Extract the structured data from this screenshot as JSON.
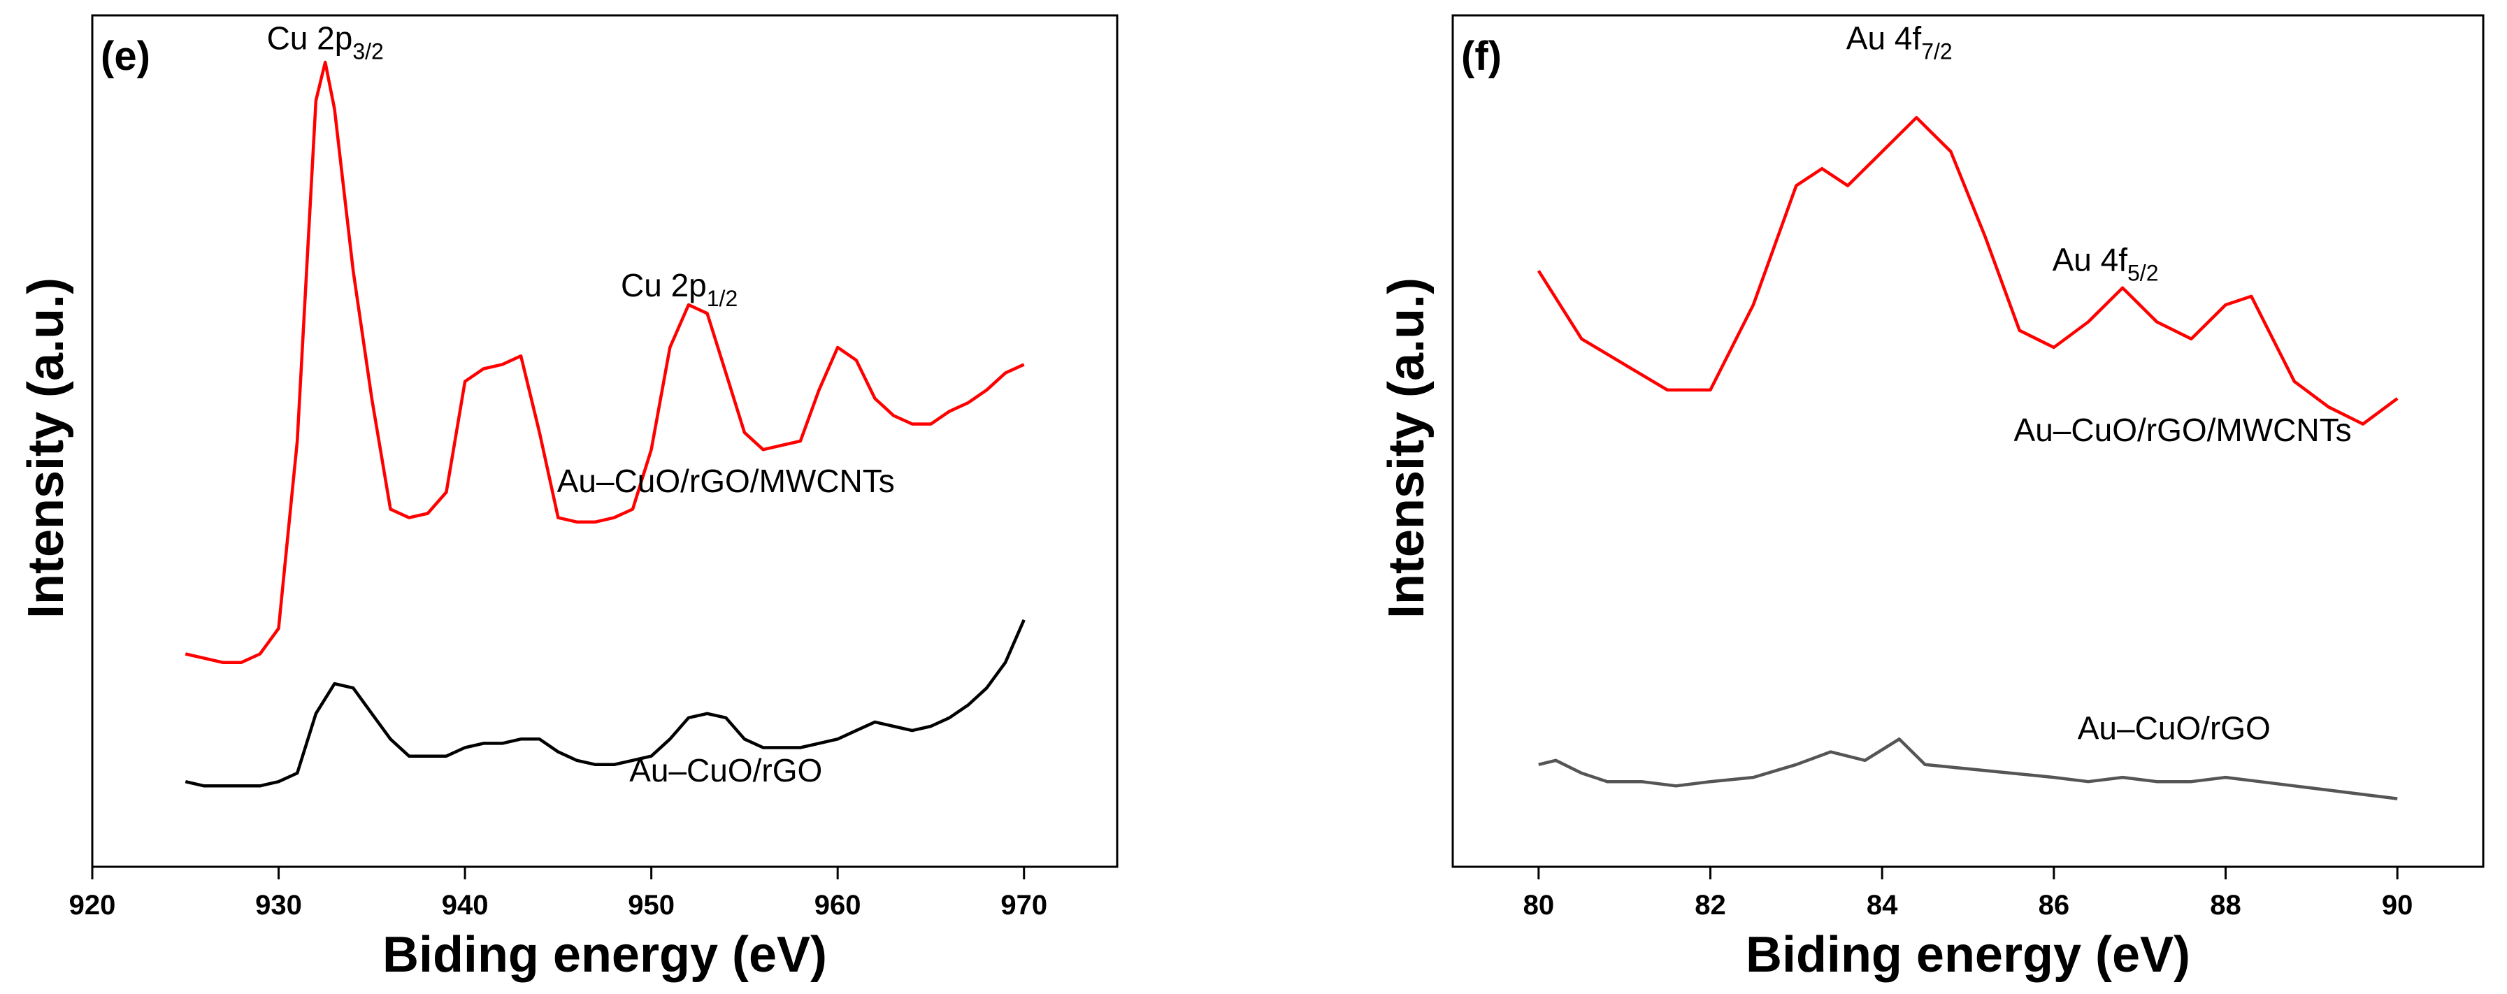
{
  "chart_data": [
    {
      "type": "line",
      "panel_label": "(e)",
      "xlabel": "Biding energy (eV)",
      "ylabel": "Intensity (a.u.)",
      "xlim": [
        920,
        975
      ],
      "ylim": [
        0,
        100
      ],
      "xticks": [
        920,
        930,
        940,
        950,
        960,
        970
      ],
      "annotations": [
        {
          "main": "Cu 2p",
          "sub": "3/2",
          "x": 932.5,
          "y": 96
        },
        {
          "main": "Cu 2p",
          "sub": "1/2",
          "x": 951.5,
          "y": 67
        }
      ],
      "series": [
        {
          "name": "Au–CuO/rGO/MWCNTs",
          "color": "#ff0000",
          "label_at": [
            954,
            44
          ],
          "x": [
            925,
            926,
            927,
            928,
            929,
            930,
            931,
            932,
            932.5,
            933,
            934,
            935,
            936,
            937,
            938,
            939,
            940,
            941,
            942,
            943,
            944,
            945,
            946,
            947,
            948,
            949,
            950,
            951,
            952,
            953,
            954,
            955,
            956,
            957,
            958,
            959,
            960,
            961,
            962,
            963,
            964,
            965,
            966,
            967,
            968,
            969,
            970
          ],
          "y": [
            25,
            24.5,
            24,
            24,
            25,
            28,
            50,
            90,
            94.5,
            89,
            70,
            55,
            42,
            41,
            41.5,
            44,
            57,
            58.5,
            59,
            60,
            51,
            41,
            40.5,
            40.5,
            41,
            42,
            49,
            61,
            66,
            65,
            58,
            51,
            49,
            49.5,
            50,
            56,
            61,
            59.5,
            55,
            53,
            52,
            52,
            53.5,
            54.5,
            56,
            58,
            59
          ]
        },
        {
          "name": "Au–CuO/rGO",
          "color": "#000000",
          "label_at": [
            954,
            10
          ],
          "x": [
            925,
            926,
            927,
            928,
            929,
            930,
            931,
            932,
            933,
            934,
            935,
            936,
            937,
            938,
            939,
            940,
            941,
            942,
            943,
            944,
            945,
            946,
            947,
            948,
            949,
            950,
            951,
            952,
            953,
            954,
            955,
            956,
            957,
            958,
            959,
            960,
            961,
            962,
            963,
            964,
            965,
            966,
            967,
            968,
            969,
            970
          ],
          "y": [
            10,
            9.5,
            9.5,
            9.5,
            9.5,
            10,
            11,
            18,
            21.5,
            21,
            18,
            15,
            13,
            13,
            13,
            14,
            14.5,
            14.5,
            15,
            15,
            13.5,
            12.5,
            12,
            12,
            12.5,
            13,
            15,
            17.5,
            18,
            17.5,
            15,
            14,
            14,
            14,
            14.5,
            15,
            16,
            17,
            16.5,
            16,
            16.5,
            17.5,
            19,
            21,
            24,
            29
          ]
        }
      ]
    },
    {
      "type": "line",
      "panel_label": "(f)",
      "xlabel": "Biding energy (eV)",
      "ylabel": "Intensity (a.u.)",
      "xlim": [
        79,
        91
      ],
      "ylim": [
        0,
        100
      ],
      "xticks": [
        80,
        82,
        84,
        86,
        88,
        90
      ],
      "annotations": [
        {
          "main": "Au 4f",
          "sub": "7/2",
          "x": 84.2,
          "y": 96
        },
        {
          "main": "Au 4f",
          "sub": "5/2",
          "x": 86.6,
          "y": 70
        }
      ],
      "series": [
        {
          "name": "Au–CuO/rGO/MWCNTs",
          "color": "#ff0000",
          "label_at": [
            87.5,
            50
          ],
          "x": [
            80,
            80.5,
            81,
            81.5,
            82,
            82.5,
            83,
            83.3,
            83.6,
            83.9,
            84.4,
            84.8,
            85.2,
            85.6,
            86,
            86.4,
            86.8,
            87.2,
            87.6,
            88,
            88.3,
            88.5,
            88.8,
            89.2,
            89.6,
            90
          ],
          "y": [
            70,
            62,
            59,
            56,
            56,
            66,
            80,
            82,
            80,
            83,
            88,
            84,
            74,
            63,
            61,
            64,
            68,
            64,
            62,
            66,
            67,
            63,
            57,
            54,
            52,
            55
          ]
        },
        {
          "name": "Au–CuO/rGO",
          "color": "#555555",
          "label_at": [
            87.4,
            15
          ],
          "x": [
            80,
            80.2,
            80.5,
            80.8,
            81.2,
            81.6,
            82,
            82.5,
            83,
            83.4,
            83.8,
            84.2,
            84.5,
            85,
            85.5,
            86,
            86.4,
            86.8,
            87.2,
            87.6,
            88,
            88.4,
            88.8,
            89.2,
            89.6,
            90
          ],
          "y": [
            12,
            12.5,
            11,
            10,
            10,
            9.5,
            10,
            10.5,
            12,
            13.5,
            12.5,
            15,
            12,
            11.5,
            11,
            10.5,
            10,
            10.5,
            10,
            10,
            10.5,
            10,
            9.5,
            9,
            8.5,
            8
          ]
        }
      ]
    }
  ]
}
